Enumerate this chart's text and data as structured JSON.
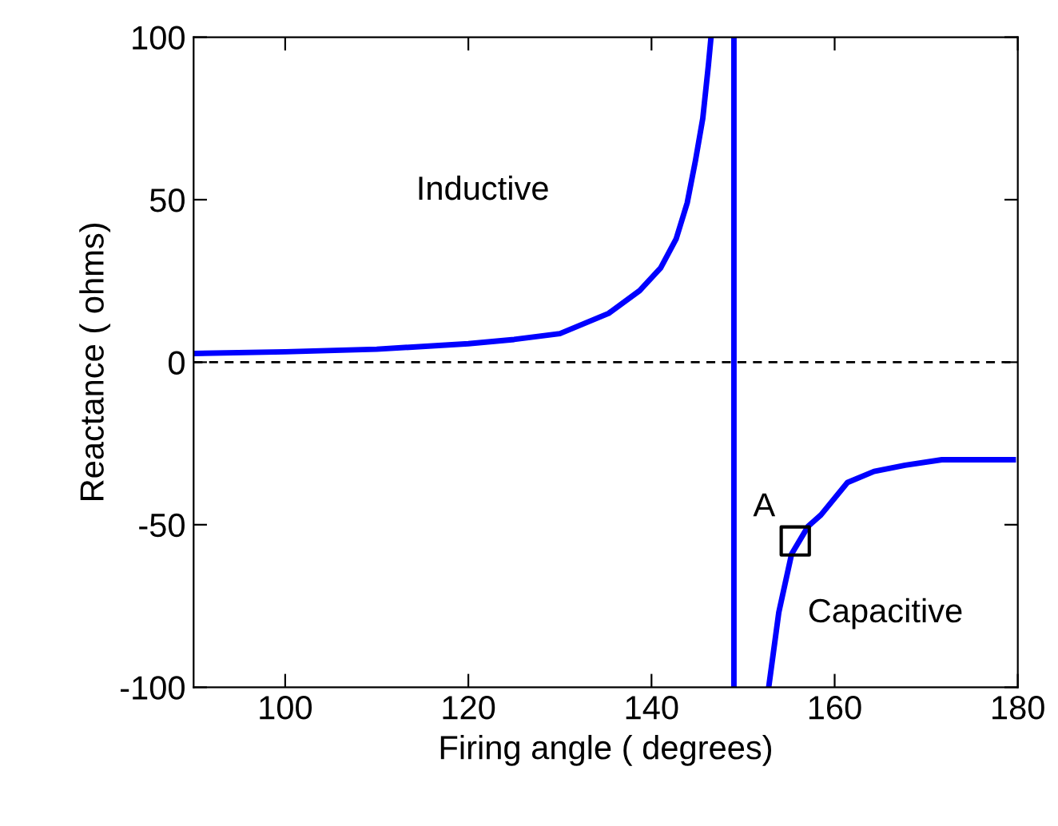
{
  "chart_data": {
    "type": "line",
    "xlabel": "Firing angle ( degrees)",
    "ylabel": "Reactance ( ohms)",
    "xlim": [
      90,
      180
    ],
    "xticks": [
      100,
      120,
      140,
      160,
      180
    ],
    "ylim": [
      -100,
      100
    ],
    "yticks": [
      -100,
      -50,
      0,
      50,
      100
    ],
    "grid": false,
    "legend": false,
    "series": [
      {
        "color": "#0000ff",
        "x": [
          90,
          100,
          110,
          120,
          125,
          130,
          135.3,
          138.7,
          141,
          142.7,
          143.9,
          144.8,
          145.6,
          146.2,
          146.5
        ],
        "values": [
          2.7,
          3.2,
          4,
          5.7,
          7,
          8.8,
          15,
          22,
          29,
          38,
          49,
          62,
          75,
          91,
          100
        ]
      },
      {
        "color": "#0000ff",
        "x": [
          152.8,
          153.9,
          155.3,
          157.1,
          158.5,
          161.4,
          164.3,
          167.7,
          171.7,
          179.5
        ],
        "values": [
          -100,
          -77,
          -59,
          -50.5,
          -47,
          -37,
          -33.6,
          -31.7,
          -30,
          -30
        ]
      },
      {
        "type": "scatter",
        "marker": "square",
        "color": "#000000",
        "x": [
          155.7
        ],
        "values": [
          -55
        ]
      }
    ],
    "ref_lines": [
      {
        "axis": "x",
        "value": 149,
        "color": "#0000ff",
        "line_style": "solid"
      },
      {
        "axis": "y",
        "value": 0,
        "color": "#000000",
        "line_style": "dashed"
      }
    ],
    "annotations": [
      "Inductive",
      "Capacitive",
      {
        "text": "A",
        "x": 155.7,
        "y": -55
      }
    ]
  }
}
